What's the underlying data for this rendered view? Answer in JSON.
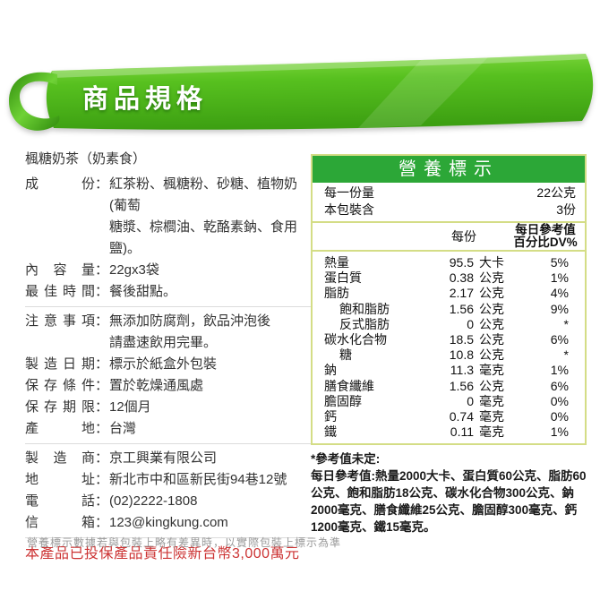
{
  "banner": {
    "title": "商品規格"
  },
  "colors": {
    "ribbon_green": "#4eb71e",
    "table_header_green": "#2ca737",
    "table_border": "#d4dd86",
    "notice_red": "#cc3333",
    "footer_gray": "#999999",
    "text_dark": "#333333"
  },
  "product": {
    "name": "楓糖奶茶（奶素食）",
    "colon": "：",
    "fields": [
      {
        "label": "成份",
        "value": "紅茶粉、楓糖粉、砂糖、植物奶(葡萄\n糖漿、棕櫚油、乾酪素鈉、食用鹽)。"
      },
      {
        "label": "內容量",
        "value": "22gx3袋"
      },
      {
        "label": "最佳時間",
        "value": "餐後甜點。",
        "divider_after": true
      },
      {
        "label": "注意事項",
        "value": "無添加防腐劑，飲品沖泡後\n請盡速飲用完畢。"
      },
      {
        "label": "製造日期",
        "value": "標示於紙盒外包裝"
      },
      {
        "label": "保存條件",
        "value": "置於乾燥通風處"
      },
      {
        "label": "保存期限",
        "value": "12個月"
      },
      {
        "label": "產地",
        "value": "台灣",
        "divider_after": true
      },
      {
        "label": "製造商",
        "value": "京工興業有限公司"
      },
      {
        "label": "地址",
        "value": "新北市中和區新民街94巷12號"
      },
      {
        "label": "電話",
        "value": "(02)2222-1808"
      },
      {
        "label": "信箱",
        "value": "123@kingkung.com",
        "divider_after": true
      }
    ],
    "insurance_notice": "本產品已投保產品責任險新台幣3,000萬元"
  },
  "nutrition": {
    "title": "營養標示",
    "serving_size_label": "每一份量",
    "serving_size_value": "22公克",
    "servings_label": "本包裝含",
    "servings_value": "3份",
    "col_per_serving": "每份",
    "col_dv_line1": "每日參考值",
    "col_dv_line2": "百分比DV%",
    "rows": [
      {
        "name": "熱量",
        "indent": false,
        "value": "95.5",
        "unit": "大卡",
        "dv": "5%"
      },
      {
        "name": "蛋白質",
        "indent": false,
        "value": "0.38",
        "unit": "公克",
        "dv": "1%"
      },
      {
        "name": "脂肪",
        "indent": false,
        "value": "2.17",
        "unit": "公克",
        "dv": "4%"
      },
      {
        "name": "飽和脂肪",
        "indent": true,
        "value": "1.56",
        "unit": "公克",
        "dv": "9%"
      },
      {
        "name": "反式脂肪",
        "indent": true,
        "value": "0",
        "unit": "公克",
        "dv": "*"
      },
      {
        "name": "碳水化合物",
        "indent": false,
        "value": "18.5",
        "unit": "公克",
        "dv": "6%"
      },
      {
        "name": "糖",
        "indent": true,
        "value": "10.8",
        "unit": "公克",
        "dv": "*"
      },
      {
        "name": "鈉",
        "indent": false,
        "value": "11.3",
        "unit": "毫克",
        "dv": "1%"
      },
      {
        "name": "膳食纖維",
        "indent": false,
        "value": "1.56",
        "unit": "公克",
        "dv": "6%"
      },
      {
        "name": "膽固醇",
        "indent": false,
        "value": "0",
        "unit": "毫克",
        "dv": "0%"
      },
      {
        "name": "鈣",
        "indent": false,
        "value": "0.74",
        "unit": "毫克",
        "dv": "0%"
      },
      {
        "name": "鐵",
        "indent": false,
        "value": "0.11",
        "unit": "毫克",
        "dv": "1%"
      }
    ],
    "footnote_undefined": "*參考值未定:",
    "footnote_dv": "每日參考值:熱量2000大卡、蛋白質60公克、脂肪60公克、飽和脂肪18公克、碳水化合物300公克、鈉2000毫克、膳食纖維25公克、膽固醇300毫克、鈣1200毫克、鐵15毫克。"
  },
  "footer_disclaimer": "營養標示數據若與包裝上略有差異時，以實際包裝上標示為準"
}
